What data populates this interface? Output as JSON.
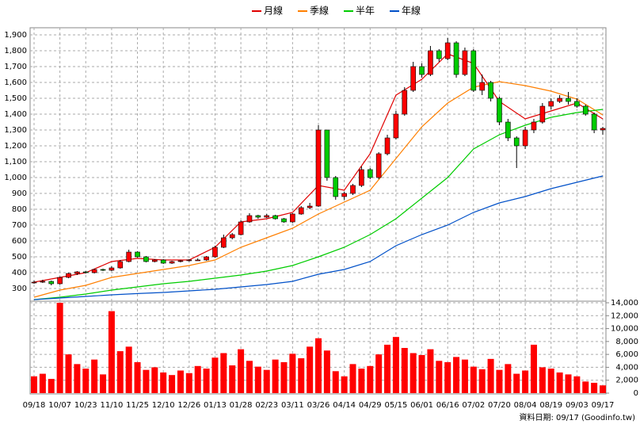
{
  "chart_data": {
    "type": "candlestick",
    "categories": [
      "09/18",
      "10/07",
      "10/23",
      "11/10",
      "11/25",
      "12/10",
      "12/26",
      "01/13",
      "01/28",
      "02/23",
      "03/11",
      "03/26",
      "04/14",
      "04/29",
      "05/15",
      "06/01",
      "06/16",
      "07/02",
      "07/20",
      "08/04",
      "08/19",
      "09/03",
      "09/17"
    ],
    "source": "資料日期: 09/17 (Goodinfo.tw)",
    "up_color": "#ff0000",
    "down_color": "#00cc00",
    "volume_color": "#ff0000",
    "open": [
      335,
      340,
      345,
      330,
      370,
      395,
      405,
      400,
      420,
      415,
      430,
      470,
      530,
      500,
      470,
      480,
      460,
      470,
      475,
      480,
      480,
      500,
      560,
      620,
      640,
      720,
      760,
      750,
      760,
      740,
      720,
      770,
      810,
      820,
      1300,
      1000,
      880,
      900,
      950,
      1050,
      1000,
      1150,
      1250,
      1400,
      1550,
      1700,
      1650,
      1800,
      1750,
      1850,
      1650,
      1800,
      1550,
      1600,
      1500,
      1350,
      1250,
      1200,
      1300,
      1350,
      1450,
      1480,
      1500,
      1480,
      1450,
      1400,
      1300
    ],
    "high": [
      350,
      355,
      350,
      375,
      400,
      410,
      410,
      425,
      425,
      440,
      480,
      545,
      535,
      505,
      485,
      485,
      475,
      480,
      485,
      490,
      505,
      570,
      640,
      650,
      730,
      775,
      765,
      770,
      765,
      745,
      775,
      820,
      840,
      1330,
      1300,
      1010,
      910,
      960,
      1070,
      1060,
      1160,
      1270,
      1420,
      1570,
      1730,
      1720,
      1830,
      1810,
      1880,
      1860,
      1820,
      1810,
      1650,
      1610,
      1510,
      1370,
      1260,
      1320,
      1370,
      1470,
      1500,
      1520,
      1540,
      1500,
      1460,
      1410,
      1320
    ],
    "low": [
      330,
      335,
      320,
      325,
      365,
      385,
      395,
      395,
      410,
      410,
      425,
      465,
      495,
      465,
      465,
      455,
      455,
      465,
      470,
      475,
      475,
      495,
      555,
      610,
      635,
      715,
      740,
      745,
      735,
      715,
      715,
      765,
      800,
      815,
      980,
      860,
      860,
      890,
      940,
      990,
      990,
      1140,
      1240,
      1390,
      1540,
      1630,
      1640,
      1730,
      1740,
      1630,
      1640,
      1540,
      1520,
      1480,
      1330,
      1230,
      1060,
      1180,
      1280,
      1340,
      1430,
      1470,
      1460,
      1440,
      1390,
      1280,
      1270
    ],
    "close": [
      340,
      345,
      330,
      370,
      395,
      405,
      400,
      420,
      415,
      430,
      470,
      530,
      500,
      470,
      480,
      460,
      470,
      475,
      480,
      480,
      500,
      560,
      620,
      640,
      720,
      760,
      750,
      760,
      740,
      720,
      770,
      810,
      820,
      1300,
      1000,
      880,
      900,
      950,
      1050,
      1000,
      1150,
      1250,
      1400,
      1550,
      1700,
      1650,
      1800,
      1750,
      1850,
      1650,
      1800,
      1550,
      1600,
      1500,
      1350,
      1250,
      1200,
      1300,
      1350,
      1450,
      1480,
      1500,
      1480,
      1450,
      1400,
      1300,
      1310
    ],
    "volume": [
      2600,
      3000,
      2200,
      14000,
      6000,
      4500,
      3800,
      5200,
      2900,
      12700,
      6500,
      7200,
      4800,
      3600,
      4000,
      3200,
      2800,
      3500,
      3100,
      4200,
      3800,
      5500,
      6200,
      4300,
      6800,
      5000,
      4100,
      3600,
      5200,
      4800,
      6100,
      5400,
      7200,
      8500,
      6600,
      3400,
      2600,
      4500,
      3800,
      4200,
      6000,
      7500,
      8700,
      7000,
      6200,
      5900,
      6800,
      5000,
      4800,
      5600,
      5200,
      4100,
      3700,
      5300,
      3600,
      4500,
      3000,
      3500,
      7500,
      4000,
      3800,
      3200,
      2900,
      2600,
      1800,
      1600,
      1200
    ],
    "series": [
      {
        "name": "月線",
        "color": "#e00000",
        "values": [
          340,
          370,
          400,
          470,
          490,
          480,
          480,
          560,
          720,
          740,
          780,
          950,
          920,
          1150,
          1520,
          1620,
          1780,
          1720,
          1480,
          1370,
          1420,
          1470,
          1370
        ]
      },
      {
        "name": "季線",
        "color": "#ff7f00",
        "values": [
          245,
          290,
          320,
          370,
          395,
          420,
          445,
          480,
          560,
          620,
          680,
          770,
          845,
          920,
          1120,
          1320,
          1470,
          1570,
          1605,
          1580,
          1545,
          1495,
          1395
        ]
      },
      {
        "name": "半年",
        "color": "#00cc00",
        "values": [
          230,
          245,
          265,
          290,
          310,
          330,
          345,
          365,
          385,
          410,
          445,
          500,
          560,
          640,
          740,
          870,
          1000,
          1180,
          1270,
          1330,
          1380,
          1410,
          1430
        ]
      },
      {
        "name": "年線",
        "color": "#0050c8",
        "values": [
          230,
          240,
          250,
          260,
          268,
          275,
          285,
          295,
          310,
          325,
          345,
          390,
          420,
          470,
          570,
          640,
          700,
          780,
          840,
          880,
          930,
          970,
          1010
        ]
      }
    ],
    "ylim": [
      220,
      1945
    ],
    "yticks": [
      300,
      400,
      500,
      600,
      700,
      800,
      900,
      {
        "value": 1000,
        "label": "1,000"
      },
      {
        "value": 1100,
        "label": "1,100"
      },
      {
        "value": 1200,
        "label": "1,200"
      },
      {
        "value": 1300,
        "label": "1,300"
      },
      {
        "value": 1400,
        "label": "1,400"
      },
      {
        "value": 1500,
        "label": "1,500"
      },
      {
        "value": 1600,
        "label": "1,600"
      },
      {
        "value": 1700,
        "label": "1,700"
      },
      {
        "value": 1800,
        "label": "1,800"
      },
      {
        "value": 1900,
        "label": "1,900"
      }
    ],
    "y2lim": [
      0,
      14000
    ],
    "y2ticks": [
      0,
      {
        "value": 2000,
        "label": "2,000"
      },
      {
        "value": 4000,
        "label": "4,000"
      },
      {
        "value": 6000,
        "label": "6,000"
      },
      {
        "value": 8000,
        "label": "8,000"
      },
      {
        "value": 10000,
        "label": "10,000"
      },
      {
        "value": 12000,
        "label": "12,000"
      },
      {
        "value": 14000,
        "label": "14,000"
      }
    ],
    "grid": true
  }
}
